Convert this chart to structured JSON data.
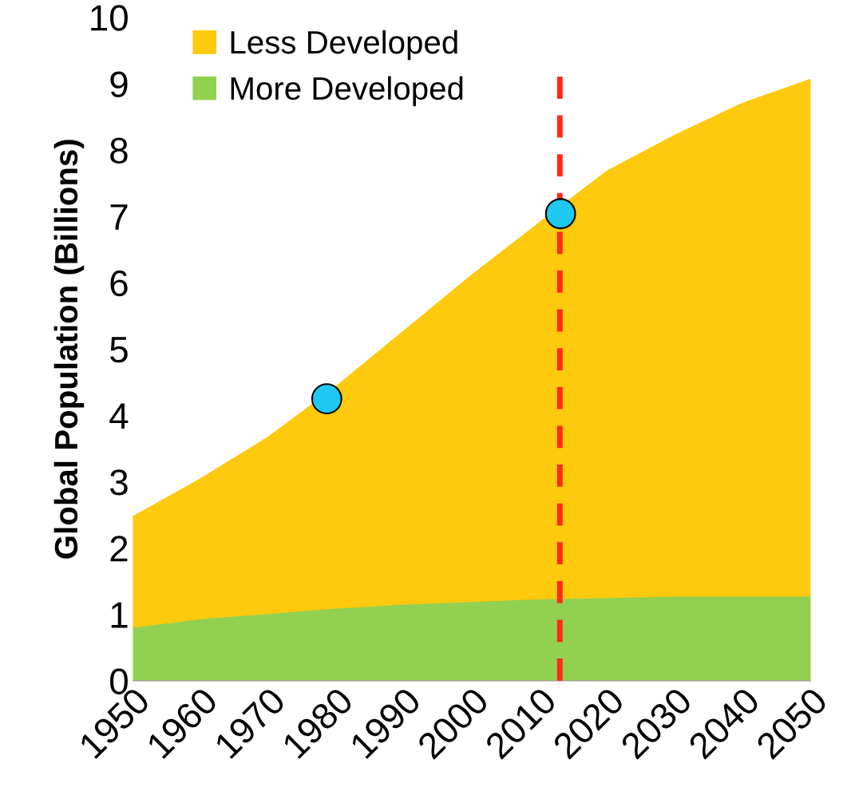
{
  "chart_data": {
    "type": "area",
    "stacked": true,
    "ylabel": "Global Population (Billions)",
    "x": [
      1950,
      1960,
      1970,
      1980,
      1990,
      2000,
      2010,
      2020,
      2030,
      2040,
      2050
    ],
    "series": [
      {
        "name": "More Developed",
        "color": "#92d050",
        "values": [
          0.81,
          0.94,
          1.02,
          1.1,
          1.16,
          1.2,
          1.24,
          1.26,
          1.28,
          1.28,
          1.28
        ]
      },
      {
        "name": "Less Developed",
        "color": "#ffc90e",
        "values": [
          1.66,
          2.1,
          2.65,
          3.33,
          4.11,
          4.91,
          5.66,
          6.42,
          6.94,
          7.42,
          7.78
        ]
      },
      {
        "type": "scatter",
        "color": "#1ec8f0",
        "marker": "circle",
        "x": [
          1978.6,
          2013.1
        ],
        "values": [
          4.25,
          7.04
        ]
      }
    ],
    "ref_lines": [
      {
        "axis": "x",
        "value": 2013,
        "color": "#ff2a1a",
        "line_style": "dashed"
      }
    ],
    "xlim": [
      1950,
      2050
    ],
    "xticks": [
      1950,
      1960,
      1970,
      1980,
      1990,
      2000,
      2010,
      2020,
      2030,
      2040,
      2050
    ],
    "ylim": [
      0,
      10
    ],
    "yticks": [
      0,
      1,
      2,
      3,
      4,
      5,
      6,
      7,
      8,
      9,
      10
    ],
    "grid": false,
    "legend": "top left"
  }
}
